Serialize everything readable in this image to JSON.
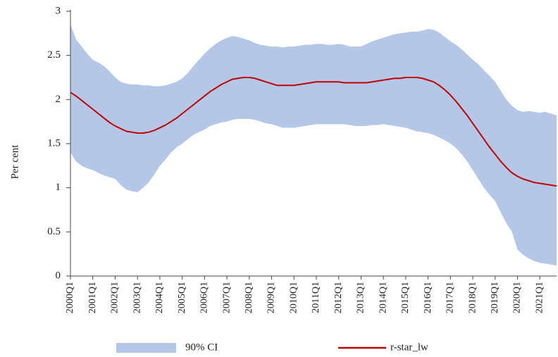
{
  "chart_data": {
    "type": "line",
    "y_label": "Per cent",
    "categories": [
      "2000Q1",
      null,
      null,
      null,
      "2001Q1",
      null,
      null,
      null,
      "2002Q1",
      null,
      null,
      null,
      "2003Q1",
      null,
      null,
      null,
      "2004Q1",
      null,
      null,
      null,
      "2005Q1",
      null,
      null,
      null,
      "2006Q1",
      null,
      null,
      null,
      "2007Q1",
      null,
      null,
      null,
      "2008Q1",
      null,
      null,
      null,
      "2009Q1",
      null,
      null,
      null,
      "2010Q1",
      null,
      null,
      null,
      "2011Q1",
      null,
      null,
      null,
      "2012Q1",
      null,
      null,
      null,
      "2013Q1",
      null,
      null,
      null,
      "2014Q1",
      null,
      null,
      null,
      "2015Q1",
      null,
      null,
      null,
      "2016Q1",
      null,
      null,
      null,
      "2017Q1",
      null,
      null,
      null,
      "2018Q1",
      null,
      null,
      null,
      "2019Q1",
      null,
      null,
      null,
      "2020Q1",
      null,
      null,
      null,
      "2021Q1",
      null,
      null,
      null
    ],
    "series": [
      {
        "name": "90% CI",
        "type": "band",
        "color": "#b4c7e7",
        "upper": [
          2.85,
          2.68,
          2.6,
          2.52,
          2.45,
          2.42,
          2.38,
          2.32,
          2.25,
          2.2,
          2.18,
          2.17,
          2.17,
          2.16,
          2.16,
          2.15,
          2.15,
          2.16,
          2.18,
          2.2,
          2.24,
          2.3,
          2.38,
          2.45,
          2.52,
          2.58,
          2.63,
          2.67,
          2.7,
          2.72,
          2.71,
          2.69,
          2.67,
          2.64,
          2.62,
          2.61,
          2.6,
          2.6,
          2.59,
          2.6,
          2.6,
          2.61,
          2.62,
          2.62,
          2.63,
          2.63,
          2.62,
          2.62,
          2.63,
          2.62,
          2.6,
          2.6,
          2.6,
          2.63,
          2.66,
          2.68,
          2.7,
          2.72,
          2.74,
          2.75,
          2.76,
          2.77,
          2.77,
          2.78,
          2.8,
          2.79,
          2.76,
          2.71,
          2.66,
          2.62,
          2.57,
          2.51,
          2.45,
          2.4,
          2.33,
          2.27,
          2.2,
          2.1,
          2.0,
          1.93,
          1.88,
          1.86,
          1.87,
          1.86,
          1.85,
          1.86,
          1.84,
          1.82
        ],
        "lower": [
          1.4,
          1.3,
          1.25,
          1.22,
          1.2,
          1.17,
          1.14,
          1.12,
          1.1,
          1.03,
          0.98,
          0.96,
          0.95,
          1.0,
          1.06,
          1.15,
          1.25,
          1.32,
          1.4,
          1.46,
          1.5,
          1.55,
          1.6,
          1.63,
          1.66,
          1.7,
          1.72,
          1.74,
          1.75,
          1.77,
          1.78,
          1.78,
          1.78,
          1.77,
          1.75,
          1.73,
          1.72,
          1.7,
          1.68,
          1.68,
          1.68,
          1.69,
          1.7,
          1.71,
          1.72,
          1.72,
          1.72,
          1.72,
          1.72,
          1.72,
          1.71,
          1.7,
          1.7,
          1.7,
          1.71,
          1.71,
          1.72,
          1.71,
          1.7,
          1.69,
          1.68,
          1.66,
          1.64,
          1.63,
          1.62,
          1.6,
          1.57,
          1.54,
          1.5,
          1.45,
          1.38,
          1.3,
          1.2,
          1.1,
          1.0,
          0.92,
          0.85,
          0.72,
          0.6,
          0.5,
          0.3,
          0.24,
          0.2,
          0.17,
          0.15,
          0.14,
          0.13,
          0.12
        ]
      },
      {
        "name": "r-star_lw",
        "type": "line",
        "color": "#c00000",
        "values": [
          2.08,
          2.04,
          1.99,
          1.94,
          1.89,
          1.84,
          1.79,
          1.74,
          1.7,
          1.67,
          1.64,
          1.63,
          1.62,
          1.62,
          1.63,
          1.65,
          1.68,
          1.71,
          1.75,
          1.79,
          1.84,
          1.89,
          1.94,
          1.99,
          2.04,
          2.09,
          2.13,
          2.17,
          2.2,
          2.23,
          2.24,
          2.25,
          2.25,
          2.24,
          2.22,
          2.2,
          2.18,
          2.16,
          2.16,
          2.16,
          2.16,
          2.17,
          2.18,
          2.19,
          2.2,
          2.2,
          2.2,
          2.2,
          2.2,
          2.19,
          2.19,
          2.19,
          2.19,
          2.19,
          2.2,
          2.21,
          2.22,
          2.23,
          2.24,
          2.24,
          2.25,
          2.25,
          2.25,
          2.24,
          2.22,
          2.2,
          2.16,
          2.11,
          2.05,
          1.98,
          1.9,
          1.82,
          1.73,
          1.64,
          1.55,
          1.46,
          1.38,
          1.3,
          1.23,
          1.17,
          1.13,
          1.1,
          1.08,
          1.06,
          1.05,
          1.04,
          1.03,
          1.02
        ]
      }
    ],
    "ylim": [
      0,
      3
    ],
    "yticks": [
      0,
      0.5,
      1,
      1.5,
      2,
      2.5,
      3
    ],
    "grid": false
  }
}
